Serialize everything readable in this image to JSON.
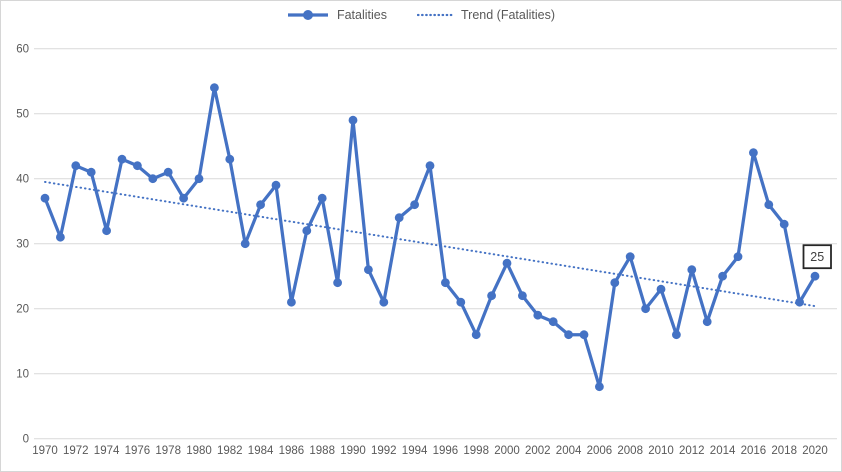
{
  "chart_data": {
    "type": "line",
    "title": "",
    "categories": [
      1970,
      1971,
      1972,
      1973,
      1974,
      1975,
      1976,
      1977,
      1978,
      1979,
      1980,
      1981,
      1982,
      1983,
      1984,
      1985,
      1986,
      1987,
      1988,
      1989,
      1990,
      1991,
      1992,
      1993,
      1994,
      1995,
      1996,
      1997,
      1998,
      1999,
      2000,
      2001,
      2002,
      2003,
      2004,
      2005,
      2006,
      2007,
      2008,
      2009,
      2010,
      2011,
      2012,
      2013,
      2014,
      2015,
      2016,
      2017,
      2018,
      2019,
      2020
    ],
    "series": [
      {
        "name": "Fatalities",
        "values": [
          37,
          31,
          42,
          41,
          32,
          43,
          42,
          40,
          41,
          37,
          40,
          54,
          43,
          30,
          36,
          39,
          21,
          32,
          37,
          24,
          49,
          26,
          21,
          34,
          36,
          42,
          24,
          21,
          16,
          22,
          27,
          22,
          19,
          18,
          16,
          16,
          8,
          24,
          28,
          20,
          23,
          16,
          26,
          18,
          25,
          28,
          44,
          36,
          33,
          21,
          25
        ]
      },
      {
        "name": "Trend (Fatalities)",
        "kind": "linear-trend",
        "start_value": 39.5,
        "end_value": 20.4
      }
    ],
    "ylim": [
      0,
      60
    ],
    "yticks": [
      0,
      10,
      20,
      30,
      40,
      50,
      60
    ],
    "xtick_labels": [
      "1970",
      "1972",
      "1974",
      "1976",
      "1978",
      "1980",
      "1982",
      "1984",
      "1986",
      "1988",
      "1990",
      "1992",
      "1994",
      "1996",
      "1998",
      "2000",
      "2002",
      "2004",
      "2006",
      "2008",
      "2010",
      "2012",
      "2014",
      "2016",
      "2018",
      "2020"
    ],
    "grid": "horizontal",
    "legend_position": "top",
    "data_label": {
      "text": "25",
      "year": 2020,
      "value": 25
    }
  },
  "colors": {
    "series": "#4472C4",
    "trend": "#4472C4",
    "gridline": "#D9D9D9",
    "axis_text": "#595959",
    "legend_text": "#595959",
    "frame_border": "#D6D6D6",
    "data_label_border": "#262626",
    "data_label_text": "#404040",
    "background": "#FFFFFF"
  }
}
